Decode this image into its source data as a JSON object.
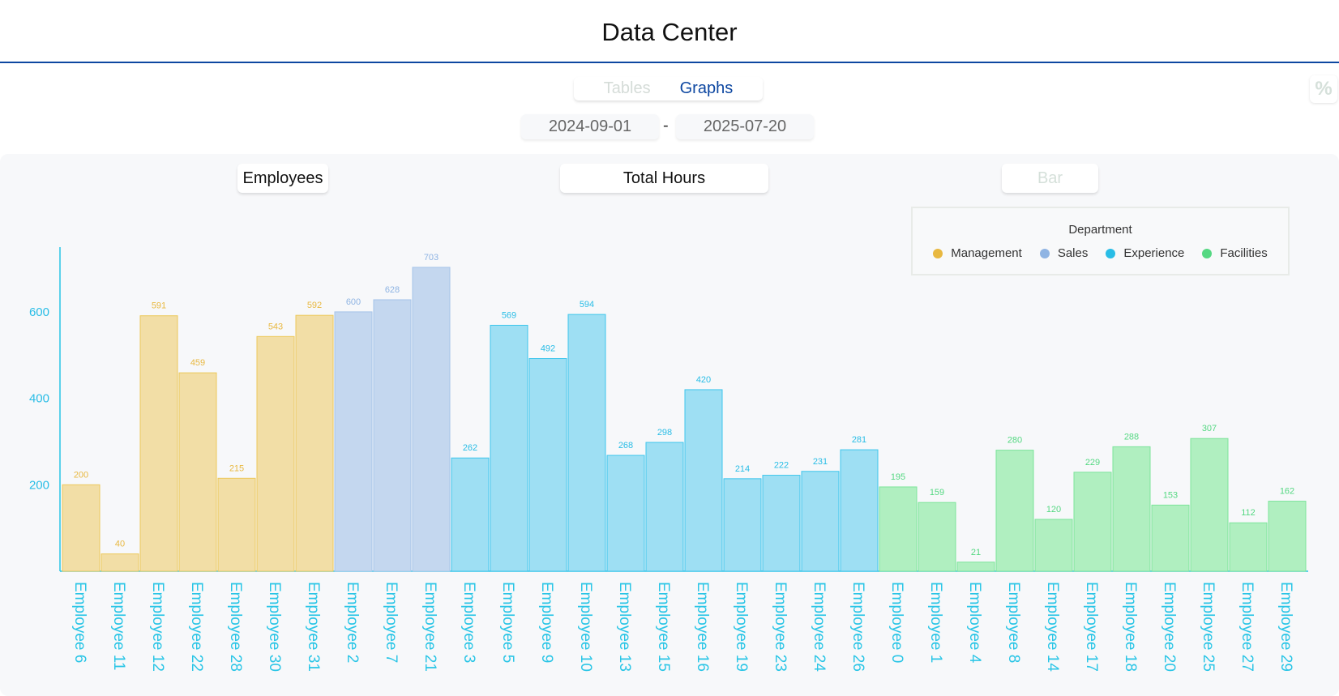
{
  "header": {
    "title": "Data Center"
  },
  "tabs": [
    {
      "label": "Tables",
      "active": false
    },
    {
      "label": "Graphs",
      "active": true
    }
  ],
  "corner_icon": "percent-icon",
  "date_range": {
    "start": "2024-09-01",
    "separator": "-",
    "end": "2025-07-20"
  },
  "controls": {
    "group_by": "Employees",
    "metric": "Total Hours",
    "chart_type": "Bar"
  },
  "legend": {
    "title": "Department",
    "items": [
      {
        "label": "Management",
        "color": "#e8b840"
      },
      {
        "label": "Sales",
        "color": "#8fb4e3"
      },
      {
        "label": "Experience",
        "color": "#29bde6"
      },
      {
        "label": "Facilities",
        "color": "#55d882"
      }
    ]
  },
  "chart_data": {
    "type": "bar",
    "title": "",
    "xlabel": "",
    "ylabel": "",
    "ylim": [
      0,
      760
    ],
    "yticks": [
      200,
      400,
      600
    ],
    "grid": false,
    "legend_position": "top-right",
    "categories": [
      "Employee 6",
      "Employee 11",
      "Employee 12",
      "Employee 22",
      "Employee 28",
      "Employee 30",
      "Employee 31",
      "Employee 2",
      "Employee 7",
      "Employee 21",
      "Employee 3",
      "Employee 5",
      "Employee 9",
      "Employee 10",
      "Employee 13",
      "Employee 15",
      "Employee 16",
      "Employee 19",
      "Employee 23",
      "Employee 24",
      "Employee 26",
      "Employee 0",
      "Employee 1",
      "Employee 4",
      "Employee 8",
      "Employee 14",
      "Employee 17",
      "Employee 18",
      "Employee 20",
      "Employee 25",
      "Employee 27",
      "Employee 29"
    ],
    "values": [
      200,
      40,
      591,
      459,
      215,
      543,
      592,
      600,
      628,
      703,
      262,
      569,
      492,
      594,
      268,
      298,
      420,
      214,
      222,
      231,
      281,
      195,
      159,
      21,
      280,
      120,
      229,
      288,
      153,
      307,
      112,
      162
    ],
    "department": [
      "Management",
      "Management",
      "Management",
      "Management",
      "Management",
      "Management",
      "Management",
      "Sales",
      "Sales",
      "Sales",
      "Experience",
      "Experience",
      "Experience",
      "Experience",
      "Experience",
      "Experience",
      "Experience",
      "Experience",
      "Experience",
      "Experience",
      "Experience",
      "Facilities",
      "Facilities",
      "Facilities",
      "Facilities",
      "Facilities",
      "Facilities",
      "Facilities",
      "Facilities",
      "Facilities",
      "Facilities",
      "Facilities"
    ]
  }
}
